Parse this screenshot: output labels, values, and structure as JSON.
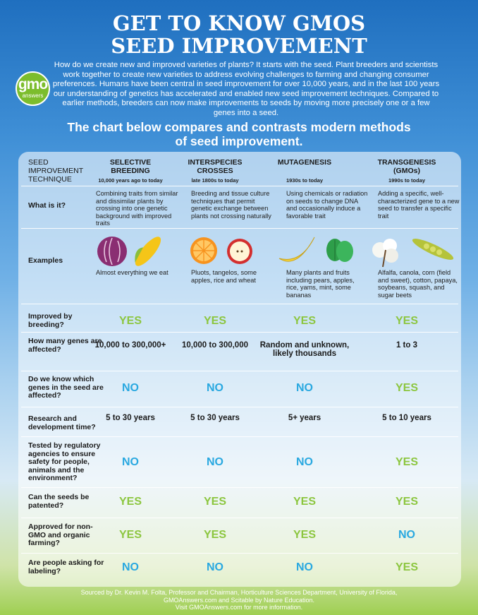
{
  "title_line1": "GET TO KNOW GMOS",
  "title_line2": "SEED IMPROVEMENT",
  "logo": {
    "line1": "gmo",
    "line2": "answers"
  },
  "intro": "How do we create new and improved varieties of plants? It starts with the seed. Plant breeders and scientists work together to create new varieties to address evolving challenges to farming and changing consumer preferences. Humans have been central in seed improvement for over 10,000 years, and in the last 100 years our understanding of genetics has accelerated and enabled new seed improvement techniques. Compared to earlier methods, breeders can now make improvements to seeds by moving more precisely one or a few genes into a seed.",
  "subhead_line1": "The chart below compares and contrasts modern methods",
  "subhead_line2": "of seed improvement.",
  "table": {
    "technique_label_1": "SEED",
    "technique_label_2": "IMPROVEMENT",
    "technique_label_3": "TECHNIQUE",
    "columns": [
      {
        "name1": "SELECTIVE",
        "name2": "BREEDING",
        "date": "10,000 years ago to today",
        "what": "Combining traits from similar and dissimilar plants by crossing into one genetic background with improved traits",
        "examples": "Almost everything we eat",
        "icon_a": "cabbage-icon",
        "icon_b": "corn-icon"
      },
      {
        "name1": "INTERSPECIES",
        "name2": "CROSSES",
        "date": "late 1800s to today",
        "what": "Breeding and tissue culture techniques that permit genetic exchange between plants not crossing naturally",
        "examples": "Pluots, tangelos, some apples, rice and wheat",
        "icon_a": "orange-icon",
        "icon_b": "apple-icon"
      },
      {
        "name1": "MUTAGENESIS",
        "name2": "",
        "date": "1930s to today",
        "what": "Using chemicals or radiation on seeds to change DNA and occasionally induce a favorable trait",
        "examples": "Many plants and fruits including pears, apples, rice, yams, mint, some bananas",
        "icon_a": "banana-icon",
        "icon_b": "mint-icon"
      },
      {
        "name1": "TRANSGENESIS",
        "name2": "(GMOs)",
        "date": "1990s to today",
        "what": "Adding a specific, well-characterized gene to a new seed to transfer a specific trait",
        "examples": "Alfalfa, canola, corn (field and sweet), cotton, papaya, soybeans, squash, and sugar beets",
        "icon_a": "cotton-icon",
        "icon_b": "soybean-icon"
      }
    ],
    "row_labels": {
      "what": "What is it?",
      "examples": "Examples",
      "improved": "Improved by breeding?",
      "genes": "How many genes are affected?",
      "know": "Do we know which genes in the seed are affected?",
      "time": "Research and development time?",
      "tested": "Tested by regulatory agencies to ensure safety for people, animals and the environment?",
      "patent": "Can the seeds be patented?",
      "approved": "Approved for non-GMO and organic farming?",
      "labeling": "Are people asking for labeling?"
    },
    "improved": [
      "YES",
      "YES",
      "YES",
      "YES"
    ],
    "genes": [
      "10,000 to 300,000+",
      "10,000 to 300,000",
      "Random and unknown, likely thousands",
      "1 to 3"
    ],
    "know": [
      "NO",
      "NO",
      "NO",
      "YES"
    ],
    "time": [
      "5 to 30 years",
      "5 to 30 years",
      "5+ years",
      "5 to 10 years"
    ],
    "tested": [
      "NO",
      "NO",
      "NO",
      "YES"
    ],
    "patent": [
      "YES",
      "YES",
      "YES",
      "YES"
    ],
    "approved": [
      "YES",
      "YES",
      "YES",
      "NO"
    ],
    "labeling": [
      "NO",
      "NO",
      "NO",
      "YES"
    ]
  },
  "footer_line1": "Sourced by Dr. Kevin M. Folta, Professor and Chairman, Horticulture Sciences Department, University of Florida,",
  "footer_line2": "GMOAnswers.com and Scitable by Nature Education.",
  "footer_line3": "Visit GMOAnswers.com for more information.",
  "colors": {
    "yes": "#8cc63f",
    "no": "#29a8e0",
    "logo": "#7cbd2d"
  }
}
